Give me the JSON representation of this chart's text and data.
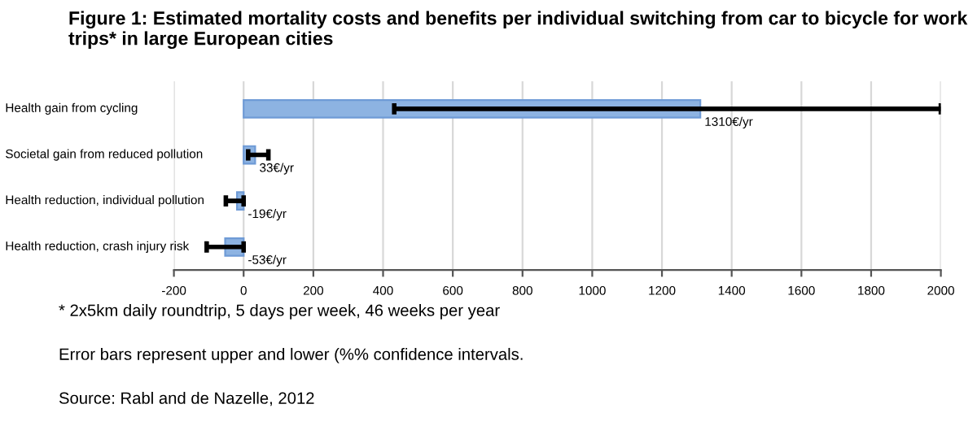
{
  "chart_data": {
    "type": "bar",
    "orientation": "horizontal",
    "title": "Figure 1: Estimated mortality costs and benefits per individual switching from car to bicycle for work trips* in large European cities",
    "categories": [
      "Health gain from cycling",
      "Societal gain from reduced pollution",
      "Health reduction, individual pollution",
      "Health reduction, crash injury risk"
    ],
    "values": [
      1310,
      33,
      -19,
      -53
    ],
    "value_labels": [
      "1310€/yr",
      "33€/yr",
      "-19€/yr",
      "-53€/yr"
    ],
    "errors": [
      [
        432,
        2000
      ],
      [
        13,
        71
      ],
      [
        -51,
        0
      ],
      [
        -106,
        0
      ]
    ],
    "color": "#8db3e2",
    "xlim": [
      -200,
      2000
    ],
    "xticks": [
      -200,
      0,
      200,
      400,
      600,
      800,
      1000,
      1200,
      1400,
      1600,
      1800,
      2000
    ],
    "grid": "x",
    "annotations": [
      "* 2x5km daily roundtrip, 5 days per week, 46 weeks per year",
      "Error bars represent upper and lower (%% confidence intervals.",
      "Source: Rabl and de Nazelle, 2012"
    ]
  }
}
